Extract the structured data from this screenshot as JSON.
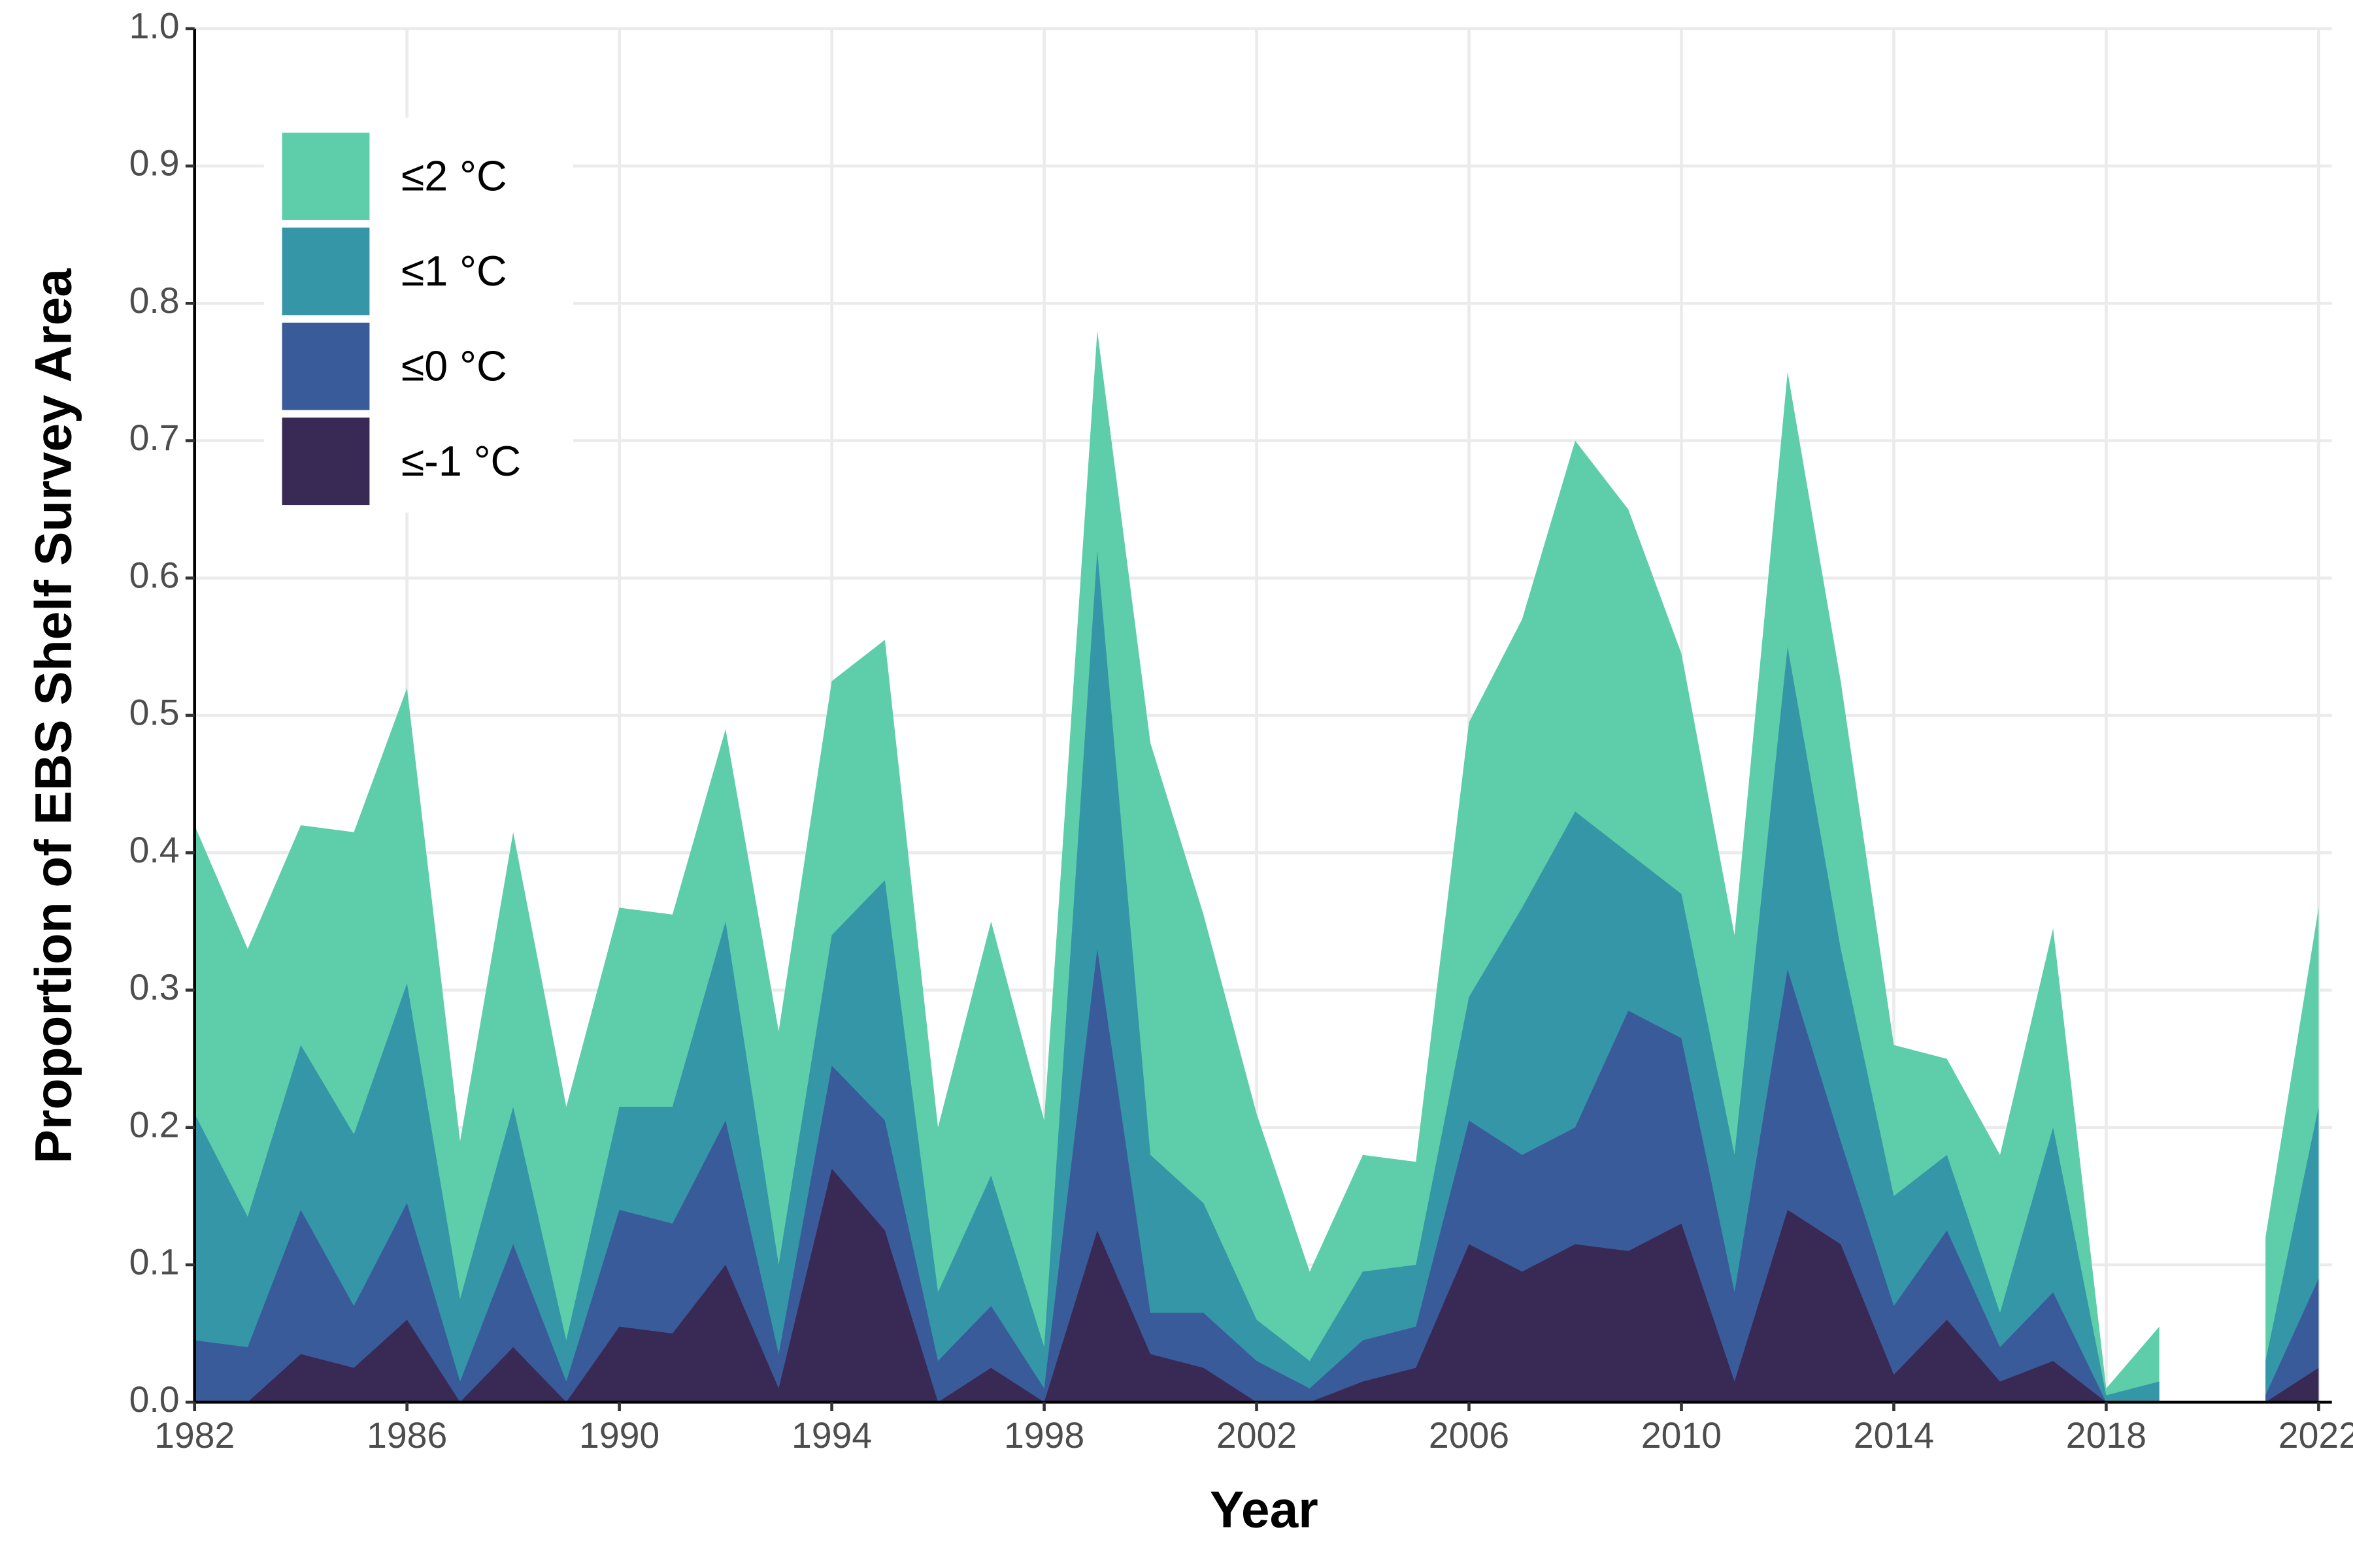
{
  "chart_data": {
    "type": "area",
    "x_label": "Year",
    "y_label": "Proportion of EBS Shelf Survey Area",
    "x": [
      1982,
      1983,
      1984,
      1985,
      1986,
      1987,
      1988,
      1989,
      1990,
      1991,
      1992,
      1993,
      1994,
      1995,
      1996,
      1997,
      1998,
      1999,
      2000,
      2001,
      2002,
      2003,
      2004,
      2005,
      2006,
      2007,
      2008,
      2009,
      2010,
      2011,
      2012,
      2013,
      2014,
      2015,
      2016,
      2017,
      2018,
      2019,
      2020,
      2021,
      2022
    ],
    "series": [
      {
        "name": "≤2 °C",
        "color": "#5ecdaa",
        "values": [
          0.42,
          0.33,
          0.42,
          0.415,
          0.52,
          0.19,
          0.415,
          0.215,
          0.36,
          0.355,
          0.49,
          0.27,
          0.525,
          0.555,
          0.2,
          0.35,
          0.205,
          0.78,
          0.48,
          0.355,
          0.21,
          0.095,
          0.18,
          0.175,
          0.495,
          0.57,
          0.7,
          0.65,
          0.545,
          0.34,
          0.75,
          0.525,
          0.26,
          0.25,
          0.18,
          0.345,
          0.01,
          0.055,
          null,
          0.12,
          0.36
        ]
      },
      {
        "name": "≤1 °C",
        "color": "#3596a8",
        "values": [
          0.21,
          0.135,
          0.26,
          0.195,
          0.305,
          0.075,
          0.215,
          0.045,
          0.215,
          0.215,
          0.35,
          0.1,
          0.34,
          0.38,
          0.08,
          0.165,
          0.04,
          0.62,
          0.18,
          0.145,
          0.06,
          0.03,
          0.095,
          0.1,
          0.295,
          0.36,
          0.43,
          0.4,
          0.37,
          0.18,
          0.55,
          0.33,
          0.15,
          0.18,
          0.065,
          0.2,
          0.005,
          0.015,
          null,
          0.03,
          0.215
        ]
      },
      {
        "name": "≤0 °C",
        "color": "#3a5b9a",
        "values": [
          0.045,
          0.04,
          0.14,
          0.07,
          0.145,
          0.015,
          0.115,
          0.015,
          0.14,
          0.13,
          0.205,
          0.035,
          0.245,
          0.205,
          0.03,
          0.07,
          0.01,
          0.33,
          0.065,
          0.065,
          0.03,
          0.01,
          0.045,
          0.055,
          0.205,
          0.18,
          0.2,
          0.285,
          0.265,
          0.08,
          0.315,
          0.19,
          0.07,
          0.125,
          0.04,
          0.08,
          0,
          0,
          null,
          0.005,
          0.09
        ]
      },
      {
        "name": "≤-1 °C",
        "color": "#392a55",
        "values": [
          0,
          0,
          0.035,
          0.025,
          0.06,
          0,
          0.04,
          0,
          0.055,
          0.05,
          0.1,
          0.01,
          0.17,
          0.125,
          0,
          0.025,
          0,
          0.125,
          0.035,
          0.025,
          0,
          0,
          0.015,
          0.025,
          0.115,
          0.095,
          0.115,
          0.11,
          0.13,
          0.015,
          0.14,
          0.115,
          0.02,
          0.06,
          0.015,
          0.03,
          0,
          0,
          null,
          0,
          0.025
        ]
      }
    ],
    "xlim": [
      1982,
      2022.25
    ],
    "xticks": [
      1982,
      1986,
      1990,
      1994,
      1998,
      2002,
      2006,
      2010,
      2014,
      2018,
      2022
    ],
    "ylim": [
      0,
      1
    ],
    "yticks": [
      {
        "value": 0,
        "label": "0.0"
      },
      0.1,
      0.2,
      0.3,
      0.4,
      0.5,
      0.6,
      0.7,
      0.8,
      0.9,
      {
        "value": 1,
        "label": "1.0"
      }
    ],
    "grid": true,
    "legend_position": "top-left"
  }
}
